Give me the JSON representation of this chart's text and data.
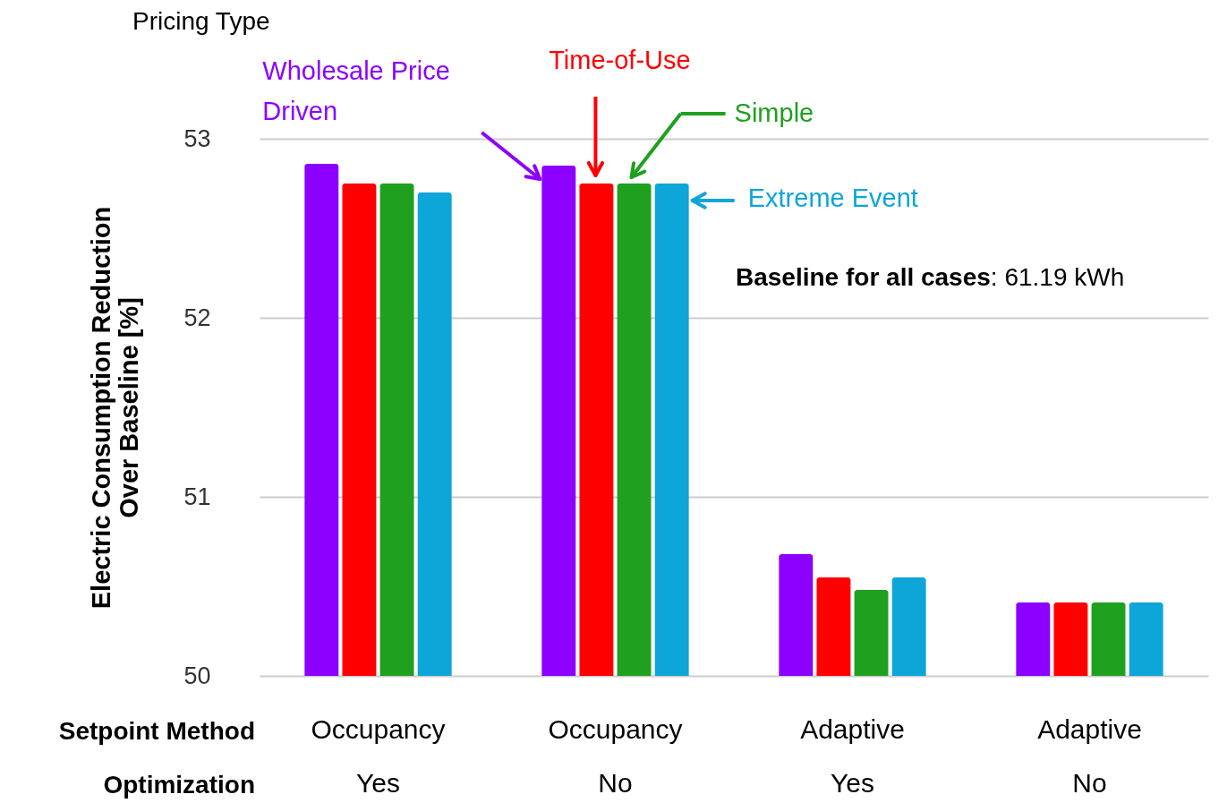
{
  "chart_data": {
    "type": "bar",
    "legend_title": "Pricing Type",
    "ylabel": "Electric Consumption Reduction Over Baseline [%]",
    "categories": [
      "Occupancy\nYes",
      "Occupancy\nNo",
      "Adaptive\nYes",
      "Adaptive\nNo"
    ],
    "series": [
      {
        "name": "Wholesale Price Driven",
        "color": "#8b00ff",
        "values": [
          52.86,
          52.85,
          50.68,
          50.41
        ]
      },
      {
        "name": "Time-of-Use",
        "color": "#ff0000",
        "values": [
          52.75,
          52.75,
          50.55,
          50.41
        ]
      },
      {
        "name": "Simple",
        "color": "#1fa01f",
        "values": [
          52.75,
          52.75,
          50.48,
          50.41
        ]
      },
      {
        "name": "Extreme Event",
        "color": "#0ea5d8",
        "values": [
          52.7,
          52.75,
          50.55,
          50.41
        ]
      }
    ],
    "ylim": [
      50,
      53
    ],
    "yticks": [
      50,
      51,
      52,
      53
    ],
    "grid": "y",
    "legend": "top",
    "annotations": [
      "Setpoint Method",
      "Optimization",
      "Baseline for all cases: 61.19 kWh"
    ]
  }
}
